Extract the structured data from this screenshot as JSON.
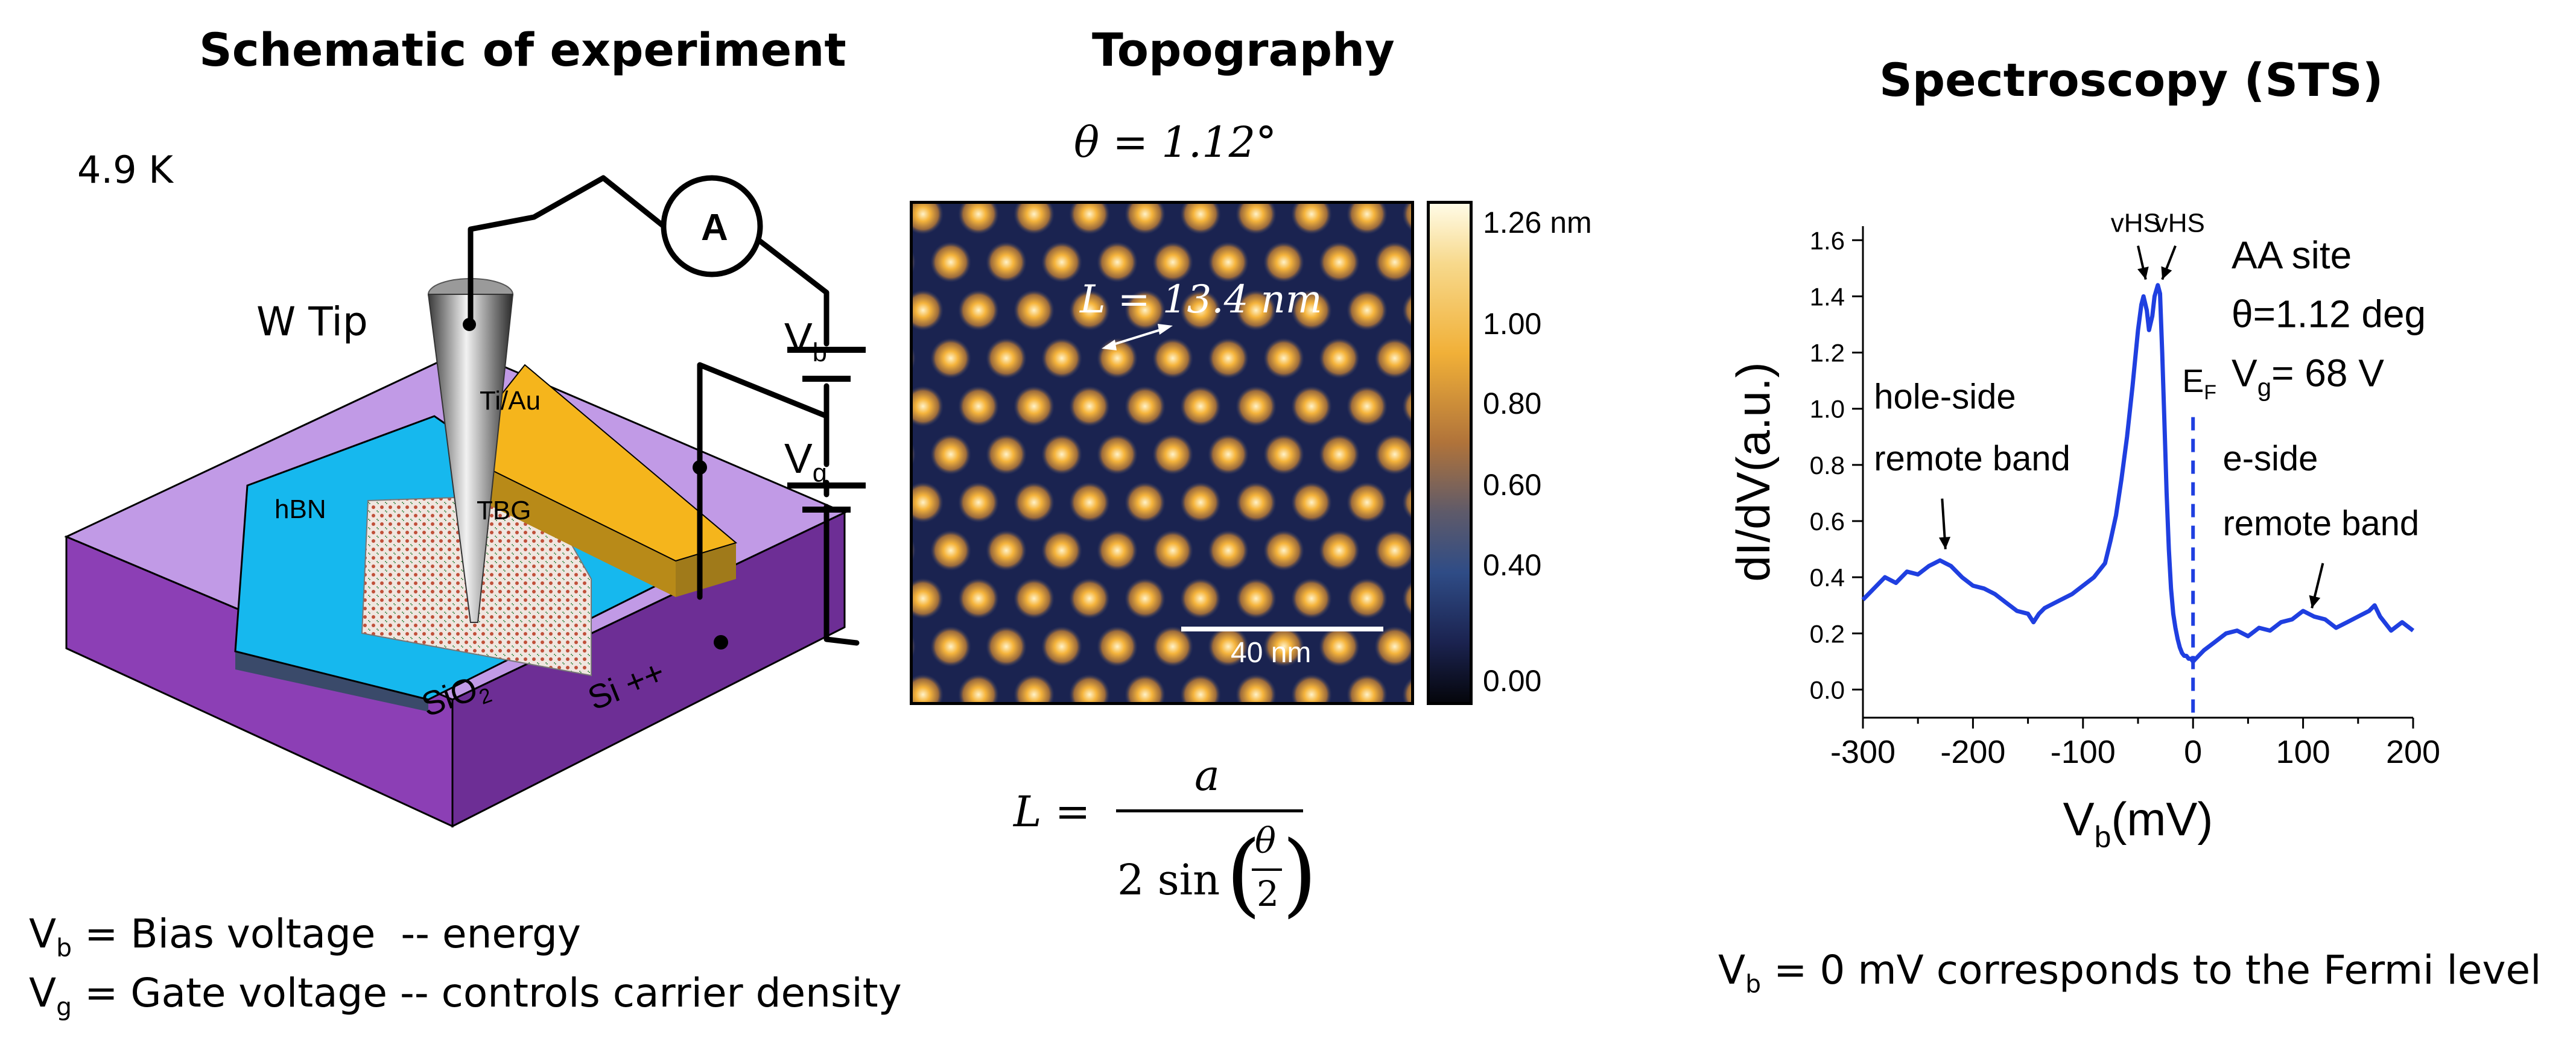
{
  "panels": {
    "schematic": {
      "title": "Schematic of experiment",
      "temperature": "4.9 K",
      "tip_label": "W Tip",
      "ammeter_label": "A",
      "contact_label": "Ti/Au",
      "hbn_label": "hBN",
      "tbg_label": "TBG",
      "sio2_label": "SiO",
      "sio2_sub": "2",
      "si_label": "Si ++",
      "vb_main": "V",
      "vb_sub": "b",
      "vg_main": "V",
      "vg_sub": "g",
      "legend_vb_main": "V",
      "legend_vb_sub": "b",
      "legend_vb_text": " = Bias voltage  -- energy",
      "legend_vg_main": "V",
      "legend_vg_sub": "g",
      "legend_vg_text": " = Gate voltage -- controls carrier density"
    },
    "topography": {
      "title": "Topography",
      "theta_text": "θ = 1.12°",
      "moire_label": "L = 13.4 nm",
      "scalebar_label": "40 nm",
      "colorbar_ticks": [
        "1.26 nm",
        "1.00",
        "0.80",
        "0.60",
        "0.40",
        "0.00"
      ],
      "formula_lhs": "L =",
      "formula_num": "a",
      "formula_den_prefix": "2 sin",
      "formula_theta": "θ",
      "formula_two": "2"
    },
    "spectroscopy": {
      "title": "Spectroscopy (STS)",
      "footer_main": "V",
      "footer_sub": "b",
      "footer_text": " = 0 mV corresponds to the Fermi level"
    }
  },
  "chart_data": {
    "type": "line",
    "xlabel_main": "V",
    "xlabel_sub": "b",
    "xlabel_unit": "(mV)",
    "ylabel": "dI/dV(a.u.)",
    "xlim": [
      -300,
      200
    ],
    "ylim": [
      -0.1,
      1.65
    ],
    "xticks": [
      -300,
      -200,
      -100,
      0,
      100,
      200
    ],
    "yticks": [
      0.0,
      0.2,
      0.4,
      0.6,
      0.8,
      1.0,
      1.2,
      1.4,
      1.6
    ],
    "info_site": "AA site",
    "info_theta": "θ=1.12 deg",
    "info_vg_main": "V",
    "info_vg_sub": "g",
    "info_vg_val": "= 68 V",
    "fermi_label_main": "E",
    "fermi_label_sub": "F",
    "fermi_x": 0,
    "annotations": {
      "vhs_left": "vHS",
      "vhs_right": "vHS",
      "hole_line1": "hole-side",
      "hole_line2": "remote band",
      "e_line1": "e-side",
      "e_line2": "remote band"
    },
    "series": [
      {
        "color": "#1f3fe0",
        "x": [
          -300,
          -290,
          -280,
          -270,
          -260,
          -250,
          -240,
          -235,
          -230,
          -225,
          -220,
          -210,
          -200,
          -190,
          -180,
          -170,
          -160,
          -150,
          -145,
          -140,
          -135,
          -130,
          -120,
          -110,
          -100,
          -90,
          -80,
          -75,
          -70,
          -65,
          -60,
          -55,
          -50,
          -47,
          -45,
          -42,
          -40,
          -37,
          -35,
          -32,
          -30,
          -28,
          -26,
          -24,
          -22,
          -20,
          -18,
          -16,
          -14,
          -12,
          -10,
          -8,
          -6,
          -4,
          -2,
          0,
          5,
          10,
          20,
          30,
          40,
          50,
          60,
          70,
          80,
          90,
          100,
          110,
          120,
          130,
          140,
          150,
          160,
          165,
          170,
          180,
          190,
          200
        ],
        "y": [
          0.32,
          0.36,
          0.4,
          0.38,
          0.42,
          0.41,
          0.44,
          0.45,
          0.46,
          0.45,
          0.44,
          0.4,
          0.37,
          0.36,
          0.34,
          0.31,
          0.28,
          0.27,
          0.24,
          0.27,
          0.29,
          0.3,
          0.32,
          0.34,
          0.37,
          0.4,
          0.45,
          0.53,
          0.62,
          0.75,
          0.9,
          1.08,
          1.28,
          1.37,
          1.4,
          1.35,
          1.28,
          1.33,
          1.4,
          1.44,
          1.41,
          1.2,
          0.95,
          0.7,
          0.5,
          0.36,
          0.27,
          0.22,
          0.18,
          0.15,
          0.13,
          0.12,
          0.12,
          0.11,
          0.11,
          0.1,
          0.12,
          0.14,
          0.17,
          0.2,
          0.21,
          0.19,
          0.22,
          0.21,
          0.24,
          0.25,
          0.28,
          0.26,
          0.25,
          0.22,
          0.24,
          0.26,
          0.28,
          0.3,
          0.26,
          0.21,
          0.24,
          0.21
        ]
      }
    ]
  }
}
